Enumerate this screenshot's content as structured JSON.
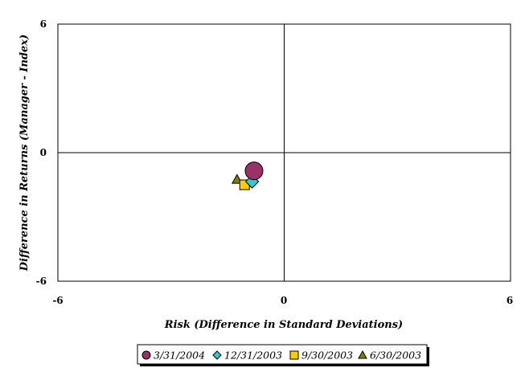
{
  "chart_data": {
    "type": "scatter",
    "title": "",
    "xlabel": "Risk (Difference in Standard Deviations)",
    "ylabel": "Difference in Returns (Manager - Index)",
    "xlim": [
      -6,
      6
    ],
    "ylim": [
      -6,
      6
    ],
    "xticks": [
      "-6",
      "0",
      "6"
    ],
    "yticks": [
      "6",
      "0",
      "-6"
    ],
    "grid": false,
    "legend_position": "bottom",
    "series": [
      {
        "name": "3/31/2004",
        "marker": "circle",
        "color": "#993366",
        "x": -0.8,
        "y": -0.85
      },
      {
        "name": "12/31/2003",
        "marker": "diamond",
        "color": "#33CCCC",
        "x": -0.85,
        "y": -1.35
      },
      {
        "name": "9/30/2003",
        "marker": "square",
        "color": "#FFCC00",
        "x": -1.05,
        "y": -1.5
      },
      {
        "name": "6/30/2003",
        "marker": "triangle",
        "color": "#808000",
        "x": -1.25,
        "y": -1.25
      }
    ]
  }
}
